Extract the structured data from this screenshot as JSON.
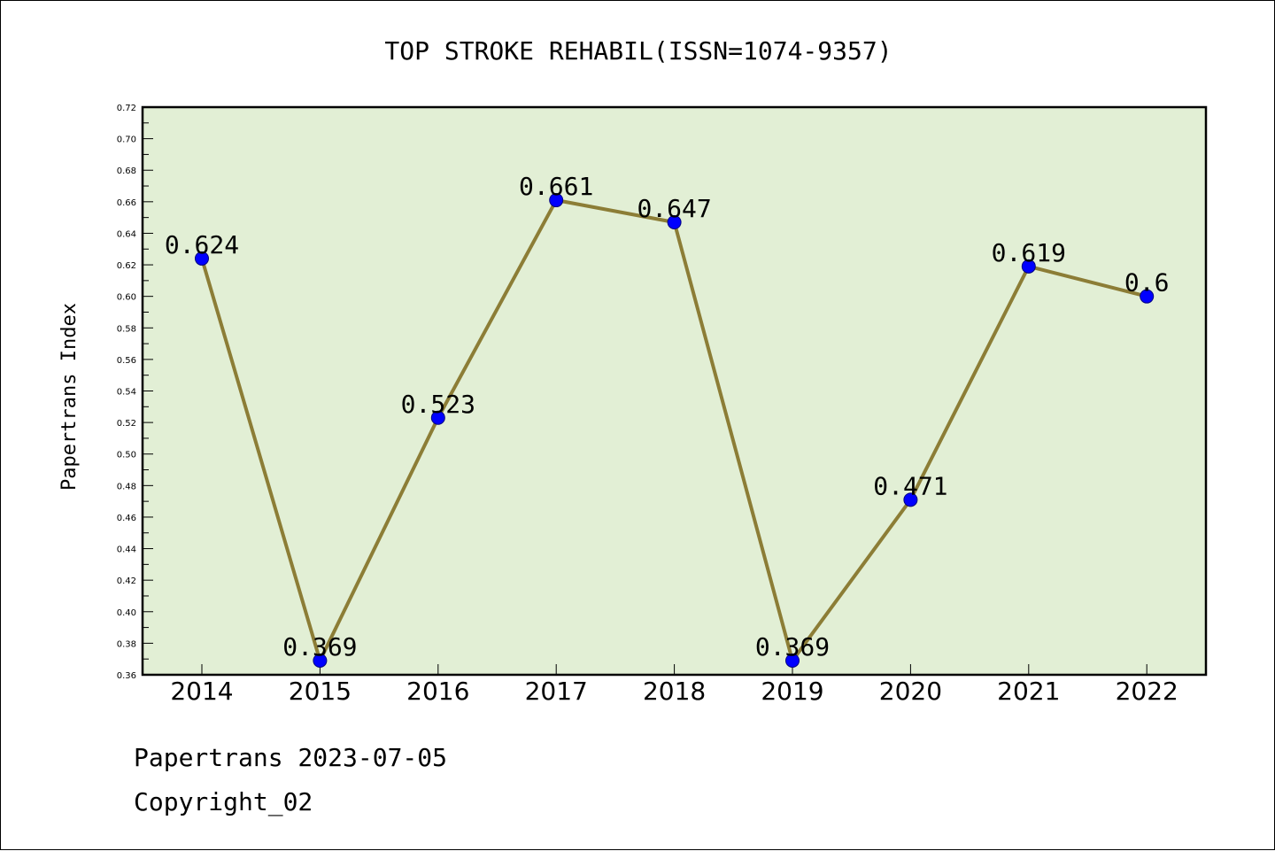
{
  "chart_data": {
    "type": "line",
    "title": "TOP STROKE REHABIL(ISSN=1074-9357)",
    "xlabel": "",
    "ylabel": "Papertrans Index",
    "categories": [
      "2014",
      "2015",
      "2016",
      "2017",
      "2018",
      "2019",
      "2020",
      "2021",
      "2022"
    ],
    "series": [
      {
        "values": [
          0.624,
          0.369,
          0.523,
          0.661,
          0.647,
          0.369,
          0.471,
          0.619,
          0.6
        ]
      }
    ],
    "data_labels": [
      "0.624",
      "0.369",
      "0.523",
      "0.661",
      "0.647",
      "0.369",
      "0.471",
      "0.619",
      "0.6"
    ],
    "ylim": [
      0.36,
      0.72
    ],
    "yticks": [
      "0.36",
      "0.38",
      "0.40",
      "0.42",
      "0.44",
      "0.46",
      "0.48",
      "0.50",
      "0.52",
      "0.54",
      "0.56",
      "0.58",
      "0.60",
      "0.62",
      "0.64",
      "0.66",
      "0.68",
      "0.70",
      "0.72"
    ],
    "grid": false,
    "colors": {
      "plot_background": "#e2efd5",
      "line": "#8c7d36",
      "marker": "#0000ff"
    }
  },
  "footer": {
    "line1": "Papertrans 2023-07-05",
    "line2": "Copyright_02"
  }
}
